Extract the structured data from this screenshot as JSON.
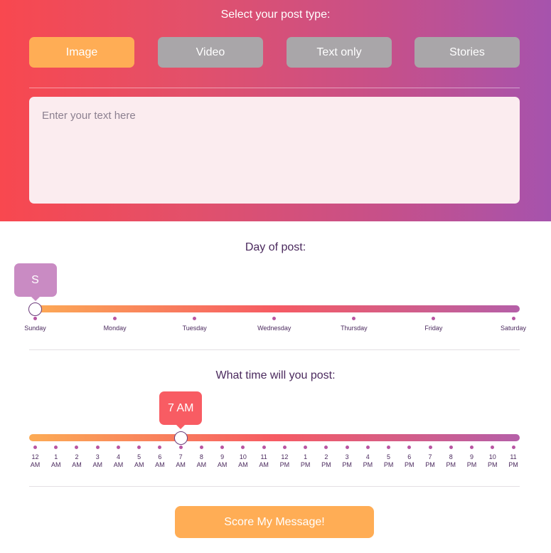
{
  "post_type": {
    "title": "Select your post type:",
    "options": [
      {
        "label": "Image",
        "active": true
      },
      {
        "label": "Video",
        "active": false
      },
      {
        "label": "Text only",
        "active": false
      },
      {
        "label": "Stories",
        "active": false
      }
    ]
  },
  "message": {
    "placeholder": "Enter your text here",
    "value": ""
  },
  "day_slider": {
    "title": "Day of post:",
    "selected_label": "S",
    "selected_index": 0,
    "ticks": [
      "Sunday",
      "Monday",
      "Tuesday",
      "Wednesday",
      "Thursday",
      "Friday",
      "Saturday"
    ]
  },
  "time_slider": {
    "title": "What time will you post:",
    "selected_label": "7 AM",
    "selected_index": 7,
    "ticks": [
      {
        "hour": "12",
        "period": "AM"
      },
      {
        "hour": "1",
        "period": "AM"
      },
      {
        "hour": "2",
        "period": "AM"
      },
      {
        "hour": "3",
        "period": "AM"
      },
      {
        "hour": "4",
        "period": "AM"
      },
      {
        "hour": "5",
        "period": "AM"
      },
      {
        "hour": "6",
        "period": "AM"
      },
      {
        "hour": "7",
        "period": "AM"
      },
      {
        "hour": "8",
        "period": "AM"
      },
      {
        "hour": "9",
        "period": "AM"
      },
      {
        "hour": "10",
        "period": "AM"
      },
      {
        "hour": "11",
        "period": "AM"
      },
      {
        "hour": "12",
        "period": "PM"
      },
      {
        "hour": "1",
        "period": "PM"
      },
      {
        "hour": "2",
        "period": "PM"
      },
      {
        "hour": "3",
        "period": "PM"
      },
      {
        "hour": "4",
        "period": "PM"
      },
      {
        "hour": "5",
        "period": "PM"
      },
      {
        "hour": "6",
        "period": "PM"
      },
      {
        "hour": "7",
        "period": "PM"
      },
      {
        "hour": "8",
        "period": "PM"
      },
      {
        "hour": "9",
        "period": "PM"
      },
      {
        "hour": "10",
        "period": "PM"
      },
      {
        "hour": "11",
        "period": "PM"
      }
    ]
  },
  "submit": {
    "label": "Score My Message!"
  },
  "colors": {
    "accent_orange": "#ffad55",
    "inactive_gray": "#a9a6a9",
    "day_bubble": "#c98bc3",
    "time_bubble": "#f85c63",
    "text_purple": "#4b2a5e"
  }
}
